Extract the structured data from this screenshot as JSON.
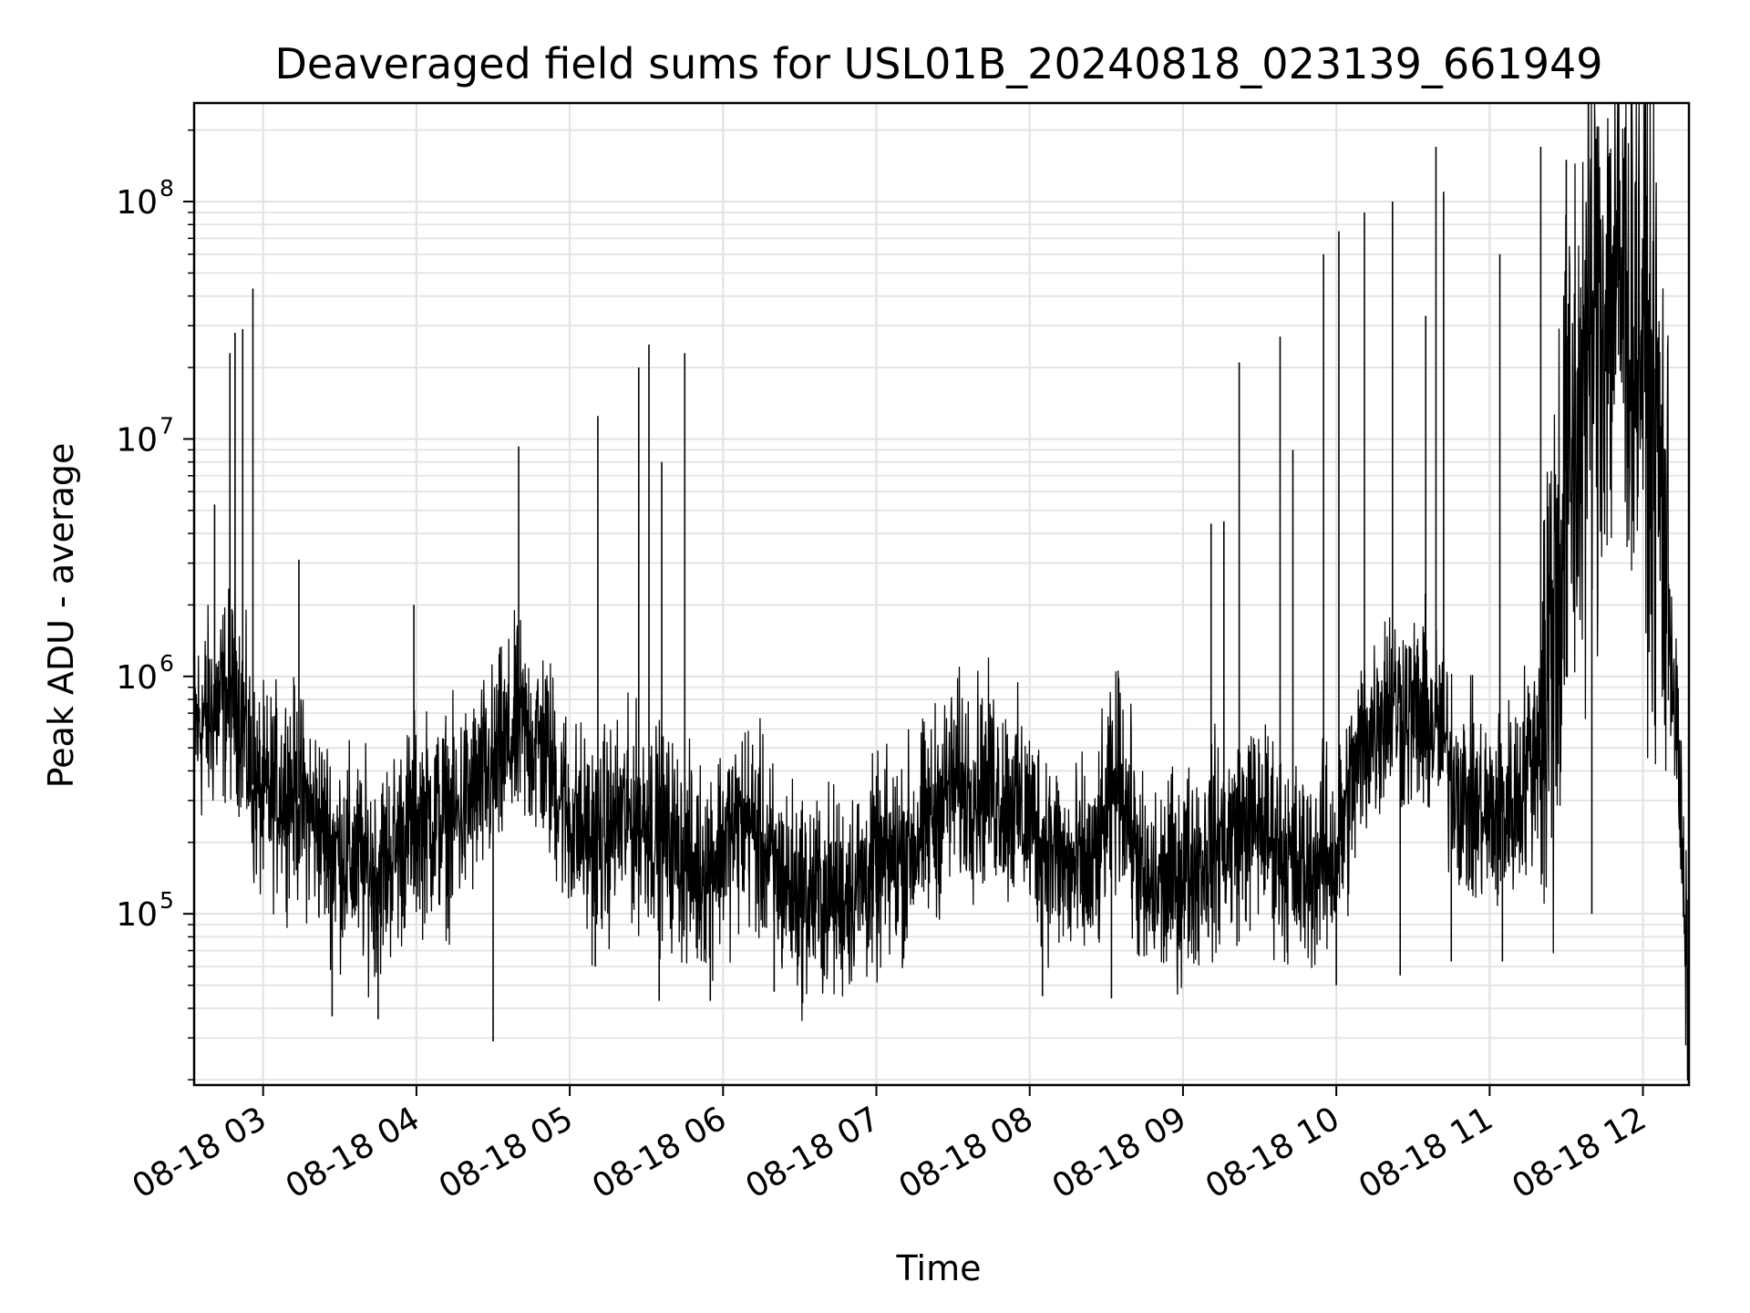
{
  "chart_data": {
    "type": "line",
    "title": "Deaveraged field sums for USL01B_20240818_023139_661949",
    "xlabel": "Time",
    "ylabel": "Peak ADU - average",
    "x_axis": {
      "kind": "datetime",
      "xlim": [
        "2024-08-18 02:33",
        "2024-08-18 12:18"
      ],
      "tick_values": [
        "2024-08-18 03:00",
        "2024-08-18 04:00",
        "2024-08-18 05:00",
        "2024-08-18 06:00",
        "2024-08-18 07:00",
        "2024-08-18 08:00",
        "2024-08-18 09:00",
        "2024-08-18 10:00",
        "2024-08-18 11:00",
        "2024-08-18 12:00"
      ],
      "tick_labels": [
        "08-18 03",
        "08-18 04",
        "08-18 05",
        "08-18 06",
        "08-18 07",
        "08-18 08",
        "08-18 09",
        "08-18 10",
        "08-18 11",
        "08-18 12"
      ],
      "tick_label_rotation_deg": 30
    },
    "y_axis": {
      "scale": "log",
      "ylim": [
        19000,
        260000000
      ],
      "tick_values": [
        100000,
        1000000,
        10000000,
        100000000
      ],
      "tick_labels": [
        {
          "base": "10",
          "exp": "5"
        },
        {
          "base": "10",
          "exp": "6"
        },
        {
          "base": "10",
          "exp": "7"
        },
        {
          "base": "10",
          "exp": "8"
        }
      ]
    },
    "grid": true,
    "legend": "none",
    "series": [
      {
        "color": "#000000",
        "x": [
          "2024-08-18 02:33",
          "2024-08-18 02:40",
          "2024-08-18 02:45",
          "2024-08-18 02:50",
          "2024-08-18 02:56",
          "2024-08-18 03:00",
          "2024-08-18 03:10",
          "2024-08-18 03:20",
          "2024-08-18 03:30",
          "2024-08-18 03:45",
          "2024-08-18 04:00",
          "2024-08-18 04:15",
          "2024-08-18 04:30",
          "2024-08-18 04:40",
          "2024-08-18 04:50",
          "2024-08-18 05:00",
          "2024-08-18 05:10",
          "2024-08-18 05:20",
          "2024-08-18 05:30",
          "2024-08-18 05:40",
          "2024-08-18 05:50",
          "2024-08-18 06:00",
          "2024-08-18 06:10",
          "2024-08-18 06:20",
          "2024-08-18 06:30",
          "2024-08-18 06:45",
          "2024-08-18 07:00",
          "2024-08-18 07:15",
          "2024-08-18 07:30",
          "2024-08-18 07:45",
          "2024-08-18 08:00",
          "2024-08-18 08:15",
          "2024-08-18 08:25",
          "2024-08-18 08:35",
          "2024-08-18 08:45",
          "2024-08-18 09:00",
          "2024-08-18 09:15",
          "2024-08-18 09:30",
          "2024-08-18 09:45",
          "2024-08-18 10:00",
          "2024-08-18 10:10",
          "2024-08-18 10:20",
          "2024-08-18 10:30",
          "2024-08-18 10:40",
          "2024-08-18 10:50",
          "2024-08-18 11:00",
          "2024-08-18 11:10",
          "2024-08-18 11:20",
          "2024-08-18 11:30",
          "2024-08-18 11:40",
          "2024-08-18 11:50",
          "2024-08-18 12:00",
          "2024-08-18 12:08",
          "2024-08-18 12:14",
          "2024-08-18 12:18"
        ],
        "y": [
          600000,
          700000,
          800000,
          850000,
          350000,
          300000,
          350000,
          250000,
          180000,
          150000,
          250000,
          250000,
          400000,
          600000,
          500000,
          250000,
          200000,
          250000,
          250000,
          200000,
          150000,
          200000,
          250000,
          150000,
          120000,
          120000,
          150000,
          200000,
          350000,
          350000,
          250000,
          150000,
          150000,
          400000,
          120000,
          150000,
          200000,
          250000,
          150000,
          180000,
          500000,
          800000,
          700000,
          600000,
          300000,
          250000,
          300000,
          600000,
          5000000,
          30000000,
          50000000,
          30000000,
          5000000,
          400000,
          30000
        ],
        "spikes": [
          {
            "x": "2024-08-18 02:41",
            "y": 5300000
          },
          {
            "x": "2024-08-18 02:47",
            "y": 23000000
          },
          {
            "x": "2024-08-18 02:49",
            "y": 28000000
          },
          {
            "x": "2024-08-18 02:52",
            "y": 29000000
          },
          {
            "x": "2024-08-18 02:56",
            "y": 43000000
          },
          {
            "x": "2024-08-18 03:14",
            "y": 3100000
          },
          {
            "x": "2024-08-18 03:59",
            "y": 2000000
          },
          {
            "x": "2024-08-18 04:40",
            "y": 9300000
          },
          {
            "x": "2024-08-18 05:11",
            "y": 12500000
          },
          {
            "x": "2024-08-18 05:27",
            "y": 20000000
          },
          {
            "x": "2024-08-18 05:31",
            "y": 25000000
          },
          {
            "x": "2024-08-18 05:36",
            "y": 8000000
          },
          {
            "x": "2024-08-18 05:45",
            "y": 23000000
          },
          {
            "x": "2024-08-18 09:11",
            "y": 4400000
          },
          {
            "x": "2024-08-18 09:16",
            "y": 4500000
          },
          {
            "x": "2024-08-18 09:22",
            "y": 21000000
          },
          {
            "x": "2024-08-18 09:38",
            "y": 27000000
          },
          {
            "x": "2024-08-18 09:43",
            "y": 9000000
          },
          {
            "x": "2024-08-18 09:55",
            "y": 60000000
          },
          {
            "x": "2024-08-18 10:01",
            "y": 75000000
          },
          {
            "x": "2024-08-18 10:11",
            "y": 90000000
          },
          {
            "x": "2024-08-18 10:22",
            "y": 100000000
          },
          {
            "x": "2024-08-18 10:35",
            "y": 33000000
          },
          {
            "x": "2024-08-18 10:39",
            "y": 170000000
          },
          {
            "x": "2024-08-18 10:42",
            "y": 110000000
          },
          {
            "x": "2024-08-18 11:04",
            "y": 60000000
          },
          {
            "x": "2024-08-18 11:20",
            "y": 170000000
          },
          {
            "x": "2024-08-18 11:30",
            "y": 150000000
          },
          {
            "x": "2024-08-18 11:47",
            "y": 160000000
          }
        ],
        "dips": [
          {
            "x": "2024-08-18 03:27",
            "y": 37000
          },
          {
            "x": "2024-08-18 03:45",
            "y": 36000
          },
          {
            "x": "2024-08-18 04:30",
            "y": 29000
          },
          {
            "x": "2024-08-18 05:10",
            "y": 60000
          },
          {
            "x": "2024-08-18 05:35",
            "y": 43000
          },
          {
            "x": "2024-08-18 05:55",
            "y": 43000
          },
          {
            "x": "2024-08-18 06:20",
            "y": 47000
          },
          {
            "x": "2024-08-18 08:05",
            "y": 45000
          },
          {
            "x": "2024-08-18 08:32",
            "y": 44000
          },
          {
            "x": "2024-08-18 10:00",
            "y": 50000
          },
          {
            "x": "2024-08-18 10:25",
            "y": 55000
          },
          {
            "x": "2024-08-18 10:45",
            "y": 63000
          },
          {
            "x": "2024-08-18 11:05",
            "y": 63000
          },
          {
            "x": "2024-08-18 11:40",
            "y": 100000
          },
          {
            "x": "2024-08-18 12:18",
            "y": 30000
          }
        ]
      }
    ]
  }
}
